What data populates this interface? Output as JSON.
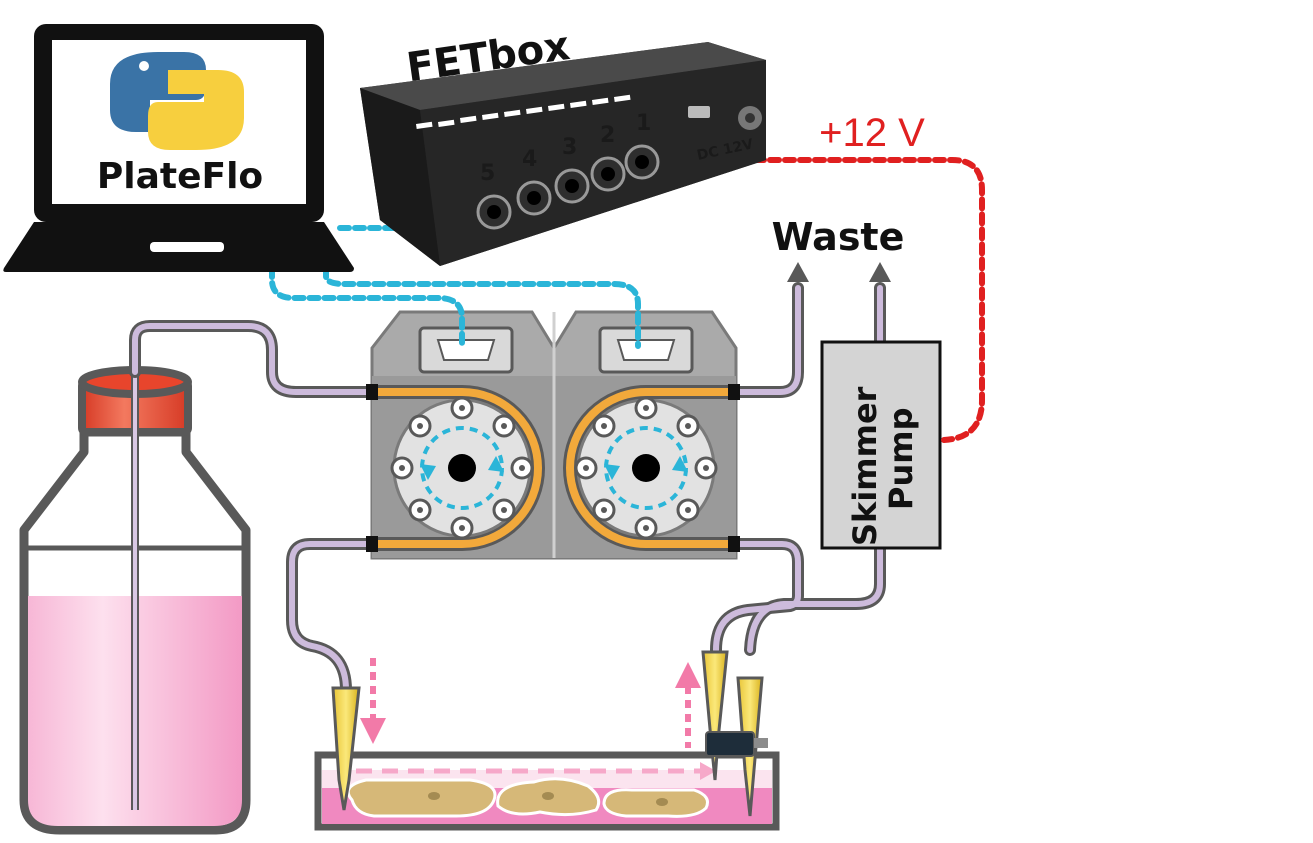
{
  "laptop": {
    "software_name": "PlateFlo",
    "logo": "python-logo-icon"
  },
  "fetbox": {
    "title": "FETbox",
    "ports": [
      "5",
      "4",
      "3",
      "2",
      "1"
    ],
    "power_label": "DC 12V"
  },
  "power": {
    "voltage_label": "+12 V"
  },
  "waste": {
    "label": "Waste"
  },
  "skimmer": {
    "line1": "Skimmer",
    "line2": "Pump"
  },
  "colors": {
    "usb_cable": "#2bb5d8",
    "power_cable": "#e02020",
    "tubing": "#c9b8d8",
    "pump_tubing": "#f2a93b",
    "media": "#f2a0c8",
    "cap": "#e8452c",
    "flow_arrow": "#f27aa8",
    "python_blue": "#3a73a6",
    "python_yellow": "#f7cf3e"
  },
  "icons": [
    "laptop-icon",
    "python-logo-icon",
    "db9-connector-icon",
    "bottle-icon",
    "flow-arrow-icon",
    "pipette-tip-icon",
    "sensor-icon"
  ]
}
